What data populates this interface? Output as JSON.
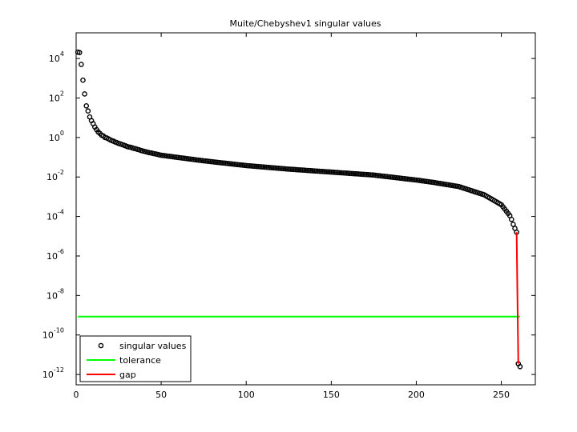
{
  "chart_data": {
    "type": "scatter",
    "title": "Muite/Chebyshev1 singular values",
    "xlim": [
      0,
      270
    ],
    "ylim": [
      3e-13,
      200000
    ],
    "log_y": true,
    "legend": "lower left",
    "xticks": [
      0,
      50,
      100,
      150,
      200,
      250
    ],
    "yticks": [
      {
        "value": 1e-12,
        "label": "10^-12"
      },
      {
        "value": 1e-10,
        "label": "10^-10"
      },
      {
        "value": 1e-08,
        "label": "10^-8"
      },
      {
        "value": 1e-06,
        "label": "10^-6"
      },
      {
        "value": 0.0001,
        "label": "10^-4"
      },
      {
        "value": 0.01,
        "label": "10^-2"
      },
      {
        "value": 1,
        "label": "10^0"
      },
      {
        "value": 100,
        "label": "10^2"
      },
      {
        "value": 10000,
        "label": "10^4"
      }
    ],
    "series": [
      {
        "name": "singular values",
        "type": "scatter",
        "color": "#000000",
        "x": [
          1,
          2,
          3,
          4,
          5,
          6,
          7,
          8,
          9,
          10,
          11,
          12,
          13,
          14,
          15,
          16,
          17,
          18,
          19,
          20,
          21,
          22,
          23,
          24,
          25,
          26,
          27,
          28,
          29,
          30,
          31,
          32,
          33,
          34,
          35,
          36,
          37,
          38,
          39,
          40,
          41,
          42,
          43,
          44,
          45,
          46,
          47,
          48,
          49,
          50,
          51,
          52,
          53,
          54,
          55,
          56,
          57,
          58,
          59,
          60,
          61,
          62,
          63,
          64,
          65,
          66,
          67,
          68,
          69,
          70,
          71,
          72,
          73,
          74,
          75,
          76,
          77,
          78,
          79,
          80,
          81,
          82,
          83,
          84,
          85,
          86,
          87,
          88,
          89,
          90,
          91,
          92,
          93,
          94,
          95,
          96,
          97,
          98,
          99,
          100,
          101,
          102,
          103,
          104,
          105,
          106,
          107,
          108,
          109,
          110,
          111,
          112,
          113,
          114,
          115,
          116,
          117,
          118,
          119,
          120,
          121,
          122,
          123,
          124,
          125,
          126,
          127,
          128,
          129,
          130,
          131,
          132,
          133,
          134,
          135,
          136,
          137,
          138,
          139,
          140,
          141,
          142,
          143,
          144,
          145,
          146,
          147,
          148,
          149,
          150,
          151,
          152,
          153,
          154,
          155,
          156,
          157,
          158,
          159,
          160,
          161,
          162,
          163,
          164,
          165,
          166,
          167,
          168,
          169,
          170,
          171,
          172,
          173,
          174,
          175,
          176,
          177,
          178,
          179,
          180,
          181,
          182,
          183,
          184,
          185,
          186,
          187,
          188,
          189,
          190,
          191,
          192,
          193,
          194,
          195,
          196,
          197,
          198,
          199,
          200,
          201,
          202,
          203,
          204,
          205,
          206,
          207,
          208,
          209,
          210,
          211,
          212,
          213,
          214,
          215,
          216,
          217,
          218,
          219,
          220,
          221,
          222,
          223,
          224,
          225,
          226,
          227,
          228,
          229,
          230,
          231,
          232,
          233,
          234,
          235,
          236,
          237,
          238,
          239,
          240,
          241,
          242,
          243,
          244,
          245,
          246,
          247,
          248,
          249,
          250,
          251,
          252,
          253,
          254,
          255,
          256,
          257,
          258,
          259,
          260,
          261
        ],
        "values": [
          21000,
          20000,
          5000,
          800,
          160,
          40,
          22,
          11,
          7.1,
          5,
          3.4,
          2.5,
          1.9,
          1.6,
          1.3,
          1.2,
          1,
          0.95,
          0.85,
          0.76,
          0.69,
          0.65,
          0.59,
          0.55,
          0.5,
          0.47,
          0.44,
          0.41,
          0.38,
          0.35,
          0.33,
          0.32,
          0.3,
          0.28,
          0.27,
          0.25,
          0.24,
          0.22,
          0.21,
          0.2,
          0.19,
          0.18,
          0.17,
          0.166,
          0.158,
          0.151,
          0.145,
          0.138,
          0.132,
          0.126,
          0.123,
          0.12,
          0.117,
          0.114,
          0.111,
          0.108,
          0.105,
          0.102,
          0.0997,
          0.0971,
          0.0947,
          0.0922,
          0.0899,
          0.0876,
          0.0854,
          0.0832,
          0.0811,
          0.079,
          0.077,
          0.075,
          0.0731,
          0.0712,
          0.0694,
          0.0677,
          0.066,
          0.0646,
          0.0632,
          0.0618,
          0.0604,
          0.0591,
          0.0578,
          0.0565,
          0.0553,
          0.0541,
          0.0529,
          0.0517,
          0.0506,
          0.0495,
          0.0484,
          0.0473,
          0.0463,
          0.0453,
          0.0443,
          0.0433,
          0.0424,
          0.0414,
          0.0405,
          0.0396,
          0.0388,
          0.0379,
          0.0373,
          0.0367,
          0.0361,
          0.0355,
          0.0349,
          0.0343,
          0.0337,
          0.0332,
          0.0326,
          0.0321,
          0.0316,
          0.031,
          0.0305,
          0.03,
          0.0295,
          0.029,
          0.0286,
          0.0281,
          0.0276,
          0.0272,
          0.0267,
          0.0263,
          0.0259,
          0.0254,
          0.025,
          0.0247,
          0.0243,
          0.024,
          0.0237,
          0.0233,
          0.023,
          0.0227,
          0.0224,
          0.0221,
          0.0218,
          0.0215,
          0.0212,
          0.0209,
          0.0206,
          0.0203,
          0.02,
          0.0198,
          0.0195,
          0.0192,
          0.019,
          0.0187,
          0.0185,
          0.0182,
          0.018,
          0.0177,
          0.0175,
          0.0172,
          0.017,
          0.0168,
          0.0165,
          0.0163,
          0.0161,
          0.0159,
          0.0156,
          0.0154,
          0.0152,
          0.015,
          0.0148,
          0.0146,
          0.0144,
          0.0142,
          0.014,
          0.0138,
          0.0136,
          0.0134,
          0.0133,
          0.0131,
          0.0129,
          0.0127,
          0.0125,
          0.0122,
          0.0119,
          0.0117,
          0.0114,
          0.0111,
          0.0109,
          0.0106,
          0.0104,
          0.0102,
          0.00994,
          0.00971,
          0.00949,
          0.00927,
          0.00906,
          0.00886,
          0.00865,
          0.00846,
          0.00826,
          0.00808,
          0.00789,
          0.00771,
          0.00754,
          0.00737,
          0.0072,
          0.00703,
          0.00684,
          0.00665,
          0.00647,
          0.0063,
          0.00612,
          0.00596,
          0.0058,
          0.00564,
          0.00548,
          0.00533,
          0.00516,
          0.005,
          0.00484,
          0.00469,
          0.00454,
          0.00439,
          0.00425,
          0.00412,
          0.00399,
          0.00386,
          0.00374,
          0.00362,
          0.0035,
          0.00339,
          0.00328,
          0.00308,
          0.00288,
          0.0027,
          0.00253,
          0.00238,
          0.00223,
          0.00209,
          0.00196,
          0.00183,
          0.00172,
          0.00161,
          0.00151,
          0.00142,
          0.00133,
          0.00125,
          0.00111,
          0.000992,
          0.000884,
          0.000788,
          0.000702,
          0.000626,
          0.000558,
          0.000497,
          0.000443,
          0.000395,
          0.000307,
          0.000238,
          0.000185,
          0.000143,
          0.000111,
          7.1e-05,
          4e-05,
          2.5e-05,
          1.6e-05,
          3.5e-12,
          2.5e-12
        ]
      },
      {
        "name": "tolerance",
        "type": "line",
        "color": "#00ff00",
        "x": [
          1,
          261
        ],
        "values": [
          8.5e-10,
          8.5e-10
        ]
      },
      {
        "name": "gap",
        "type": "line",
        "color": "#ff0000",
        "x": [
          259,
          260
        ],
        "values": [
          1.6e-05,
          3.5e-12
        ]
      }
    ]
  }
}
